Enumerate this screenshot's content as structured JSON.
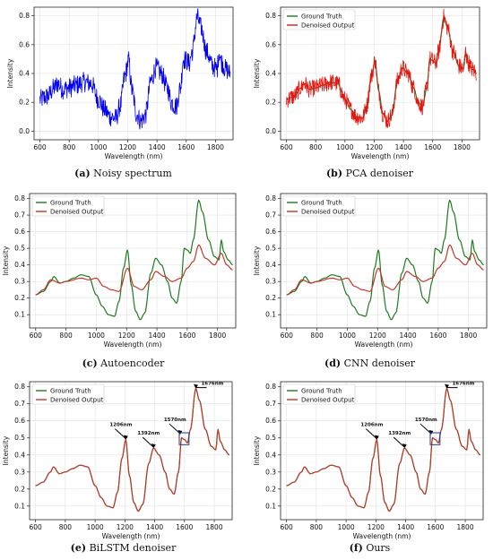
{
  "figure": {
    "captions": [
      {
        "id": "a",
        "text": "Noisy spectrum"
      },
      {
        "id": "b",
        "text": "PCA denoiser"
      },
      {
        "id": "c",
        "text": "Autoencoder"
      },
      {
        "id": "d",
        "text": "CNN denoiser"
      },
      {
        "id": "e",
        "text": "BiLSTM denoiser"
      },
      {
        "id": "f",
        "text": "Ours"
      }
    ]
  },
  "colors": {
    "ground_truth": "#1f7a1f",
    "denoised": "#c0392b",
    "noisy": "#0000ee",
    "pca": "#e8140f",
    "annotation_box": "#1f3a93"
  },
  "chart_data": [
    {
      "id": "a",
      "type": "line",
      "title": "",
      "xlabel": "Wavelength (nm)",
      "ylabel": "Intensity",
      "xlim": [
        560,
        1920
      ],
      "ylim": [
        -0.06,
        0.86
      ],
      "xticks": [
        600,
        800,
        1000,
        1200,
        1400,
        1600,
        1800
      ],
      "yticks": [
        0.0,
        0.2,
        0.4,
        0.6,
        0.8
      ],
      "grid": true,
      "legend": [],
      "series": [
        {
          "name": "Noisy",
          "color": "#0000ee",
          "noise": 0.07,
          "profile": "gt"
        }
      ]
    },
    {
      "id": "b",
      "type": "line",
      "title": "",
      "xlabel": "Wavelength (nm)",
      "ylabel": "Intensity",
      "xlim": [
        560,
        1920
      ],
      "ylim": [
        -0.06,
        0.86
      ],
      "xticks": [
        600,
        800,
        1000,
        1200,
        1400,
        1600,
        1800
      ],
      "yticks": [
        0.0,
        0.2,
        0.4,
        0.6,
        0.8
      ],
      "grid": true,
      "legend": [
        "Ground Truth",
        "Denoised Output"
      ],
      "series": [
        {
          "name": "Ground Truth",
          "color": "#1f7a1f",
          "noise": 0.0,
          "profile": "gt"
        },
        {
          "name": "Denoised Output",
          "color": "#e8140f",
          "noise": 0.06,
          "profile": "gt"
        }
      ]
    },
    {
      "id": "c",
      "type": "line",
      "title": "",
      "xlabel": "Wavelength (nm)",
      "ylabel": "Intensity",
      "xlim": [
        560,
        1920
      ],
      "ylim": [
        0.02,
        0.83
      ],
      "xticks": [
        600,
        800,
        1000,
        1200,
        1400,
        1600,
        1800
      ],
      "yticks": [
        0.1,
        0.2,
        0.3,
        0.4,
        0.5,
        0.6,
        0.7,
        0.8
      ],
      "grid": true,
      "legend": [
        "Ground Truth",
        "Denoised Output"
      ],
      "series": [
        {
          "name": "Ground Truth",
          "color": "#1f7a1f",
          "noise": 0.0,
          "profile": "gt"
        },
        {
          "name": "Denoised Output",
          "color": "#c0392b",
          "noise": 0.0,
          "profile": "smooth"
        }
      ]
    },
    {
      "id": "d",
      "type": "line",
      "title": "",
      "xlabel": "Wavelength (nm)",
      "ylabel": "Intensity",
      "xlim": [
        560,
        1920
      ],
      "ylim": [
        0.02,
        0.83
      ],
      "xticks": [
        600,
        800,
        1000,
        1200,
        1400,
        1600,
        1800
      ],
      "yticks": [
        0.1,
        0.2,
        0.3,
        0.4,
        0.5,
        0.6,
        0.7,
        0.8
      ],
      "grid": true,
      "legend": [
        "Ground Truth",
        "Denoised Output"
      ],
      "series": [
        {
          "name": "Ground Truth",
          "color": "#1f7a1f",
          "noise": 0.0,
          "profile": "gt"
        },
        {
          "name": "Denoised Output",
          "color": "#c0392b",
          "noise": 0.0,
          "profile": "smooth"
        }
      ]
    },
    {
      "id": "e",
      "type": "line",
      "title": "",
      "xlabel": "Wavelength (nm)",
      "ylabel": "Intensity",
      "xlim": [
        560,
        1920
      ],
      "ylim": [
        0.02,
        0.83
      ],
      "xticks": [
        600,
        800,
        1000,
        1200,
        1400,
        1600,
        1800
      ],
      "yticks": [
        0.1,
        0.2,
        0.3,
        0.4,
        0.5,
        0.6,
        0.7,
        0.8
      ],
      "grid": true,
      "legend": [
        "Ground Truth",
        "Denoised Output"
      ],
      "series": [
        {
          "name": "Ground Truth",
          "color": "#1f7a1f",
          "noise": 0.0,
          "profile": "gt"
        },
        {
          "name": "Denoised Output",
          "color": "#c0392b",
          "noise": 0.0,
          "profile": "gt"
        }
      ],
      "annotations": [
        {
          "text": "1206nm",
          "x": 1206,
          "y": 0.49
        },
        {
          "text": "1392nm",
          "x": 1392,
          "y": 0.44
        },
        {
          "text": "1570nm",
          "x": 1570,
          "y": 0.52
        },
        {
          "text": "1676nm",
          "x": 1676,
          "y": 0.79
        }
      ],
      "box": {
        "x0": 1565,
        "x1": 1630,
        "y0": 0.46,
        "y1": 0.53
      }
    },
    {
      "id": "f",
      "type": "line",
      "title": "",
      "xlabel": "Wavelength (nm)",
      "ylabel": "Intensity",
      "xlim": [
        560,
        1920
      ],
      "ylim": [
        0.02,
        0.83
      ],
      "xticks": [
        600,
        800,
        1000,
        1200,
        1400,
        1600,
        1800
      ],
      "yticks": [
        0.1,
        0.2,
        0.3,
        0.4,
        0.5,
        0.6,
        0.7,
        0.8
      ],
      "grid": true,
      "legend": [
        "Ground Truth",
        "Denoised Output"
      ],
      "series": [
        {
          "name": "Ground Truth",
          "color": "#1f7a1f",
          "noise": 0.0,
          "profile": "gt"
        },
        {
          "name": "Denoised Output",
          "color": "#c0392b",
          "noise": 0.0,
          "profile": "gt"
        }
      ],
      "annotations": [
        {
          "text": "1206nm",
          "x": 1206,
          "y": 0.49
        },
        {
          "text": "1392nm",
          "x": 1392,
          "y": 0.44
        },
        {
          "text": "1570nm",
          "x": 1570,
          "y": 0.52
        },
        {
          "text": "1676nm",
          "x": 1676,
          "y": 0.79
        }
      ],
      "box": {
        "x0": 1565,
        "x1": 1630,
        "y0": 0.46,
        "y1": 0.53
      }
    }
  ],
  "spectrum": {
    "gt_points": [
      [
        600,
        0.22
      ],
      [
        650,
        0.24
      ],
      [
        700,
        0.3
      ],
      [
        720,
        0.33
      ],
      [
        760,
        0.29
      ],
      [
        800,
        0.3
      ],
      [
        850,
        0.32
      ],
      [
        900,
        0.34
      ],
      [
        950,
        0.33
      ],
      [
        1000,
        0.22
      ],
      [
        1040,
        0.15
      ],
      [
        1080,
        0.1
      ],
      [
        1120,
        0.09
      ],
      [
        1150,
        0.18
      ],
      [
        1180,
        0.38
      ],
      [
        1206,
        0.49
      ],
      [
        1230,
        0.28
      ],
      [
        1260,
        0.12
      ],
      [
        1290,
        0.07
      ],
      [
        1320,
        0.11
      ],
      [
        1360,
        0.35
      ],
      [
        1392,
        0.44
      ],
      [
        1430,
        0.4
      ],
      [
        1470,
        0.3
      ],
      [
        1500,
        0.2
      ],
      [
        1530,
        0.17
      ],
      [
        1560,
        0.3
      ],
      [
        1580,
        0.5
      ],
      [
        1600,
        0.49
      ],
      [
        1620,
        0.47
      ],
      [
        1640,
        0.55
      ],
      [
        1676,
        0.79
      ],
      [
        1700,
        0.72
      ],
      [
        1740,
        0.55
      ],
      [
        1780,
        0.45
      ],
      [
        1810,
        0.43
      ],
      [
        1825,
        0.55
      ],
      [
        1840,
        0.48
      ],
      [
        1870,
        0.43
      ],
      [
        1900,
        0.4
      ]
    ],
    "smooth_points": [
      [
        600,
        0.22
      ],
      [
        650,
        0.25
      ],
      [
        700,
        0.31
      ],
      [
        760,
        0.29
      ],
      [
        800,
        0.3
      ],
      [
        900,
        0.32
      ],
      [
        950,
        0.31
      ],
      [
        1000,
        0.32
      ],
      [
        1050,
        0.27
      ],
      [
        1100,
        0.25
      ],
      [
        1150,
        0.24
      ],
      [
        1206,
        0.38
      ],
      [
        1250,
        0.27
      ],
      [
        1300,
        0.25
      ],
      [
        1360,
        0.31
      ],
      [
        1392,
        0.36
      ],
      [
        1450,
        0.33
      ],
      [
        1500,
        0.3
      ],
      [
        1560,
        0.32
      ],
      [
        1600,
        0.38
      ],
      [
        1640,
        0.42
      ],
      [
        1676,
        0.52
      ],
      [
        1720,
        0.44
      ],
      [
        1780,
        0.4
      ],
      [
        1825,
        0.47
      ],
      [
        1860,
        0.4
      ],
      [
        1900,
        0.37
      ]
    ]
  }
}
